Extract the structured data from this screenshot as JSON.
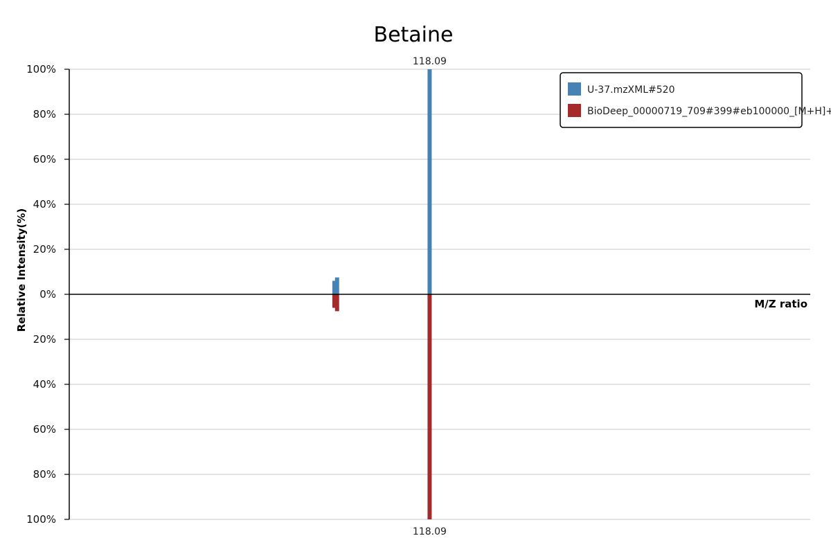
{
  "chart_data": {
    "type": "bar",
    "title": "Betaine",
    "xlabel": "M/Z ratio",
    "ylabel": "Relative Intensity(%)",
    "ylim": [
      -100,
      100
    ],
    "y_tick_labels": [
      "100%",
      "80%",
      "60%",
      "40%",
      "20%",
      "0%",
      "20%",
      "40%",
      "60%",
      "80%",
      "100%"
    ],
    "y_tick_values": [
      100,
      80,
      60,
      40,
      20,
      0,
      -20,
      -40,
      -60,
      -80,
      -100
    ],
    "grid": true,
    "legend_position": "top-right",
    "xlim": [
      50,
      190
    ],
    "series": [
      {
        "name": "U-37.mzXML#520",
        "color": "#4682b4",
        "direction": "up",
        "peaks": [
          {
            "mz": 100.1,
            "intensity": 6
          },
          {
            "mz": 100.6,
            "intensity": 7.5
          },
          {
            "mz": 118.09,
            "intensity": 100,
            "label": "118.09"
          }
        ]
      },
      {
        "name": "BioDeep_00000719_709#399#eb100000_[M+H]+",
        "color": "#a52a2a",
        "direction": "down",
        "peaks": [
          {
            "mz": 100.1,
            "intensity": 6
          },
          {
            "mz": 100.6,
            "intensity": 7.5
          },
          {
            "mz": 118.09,
            "intensity": 100,
            "label": "118.09"
          }
        ]
      }
    ]
  }
}
